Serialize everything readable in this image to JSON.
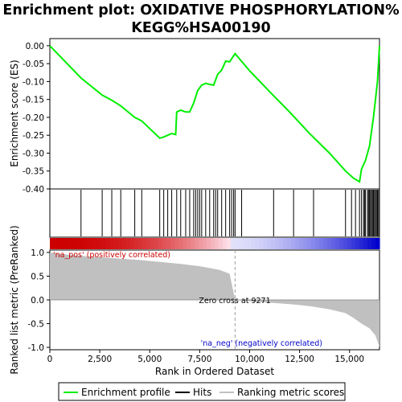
{
  "chart_data": {
    "type": "line",
    "title_line1": "Enrichment plot: OXIDATIVE PHOSPHORYLATION%",
    "title_line2": "KEGG%HSA00190",
    "top_panel": {
      "ylabel": "Enrichment score (ES)",
      "ylim": [
        -0.4,
        0.02
      ],
      "yticks": [
        "0.00",
        "-0.05",
        "-0.10",
        "-0.15",
        "-0.20",
        "-0.25",
        "-0.30",
        "-0.35",
        "-0.40"
      ],
      "ytick_values": [
        0.0,
        -0.05,
        -0.1,
        -0.15,
        -0.2,
        -0.25,
        -0.3,
        -0.35,
        -0.4
      ],
      "series_name": "Enrichment profile",
      "color": "#00ee00",
      "es_points": [
        [
          0,
          0.0
        ],
        [
          1560,
          -0.09
        ],
        [
          2620,
          -0.138
        ],
        [
          3100,
          -0.152
        ],
        [
          3550,
          -0.168
        ],
        [
          4250,
          -0.2
        ],
        [
          4600,
          -0.21
        ],
        [
          5500,
          -0.258
        ],
        [
          5700,
          -0.255
        ],
        [
          5900,
          -0.25
        ],
        [
          6100,
          -0.245
        ],
        [
          6300,
          -0.248
        ],
        [
          6350,
          -0.185
        ],
        [
          6550,
          -0.18
        ],
        [
          6800,
          -0.185
        ],
        [
          7000,
          -0.185
        ],
        [
          7200,
          -0.16
        ],
        [
          7400,
          -0.125
        ],
        [
          7600,
          -0.11
        ],
        [
          7800,
          -0.105
        ],
        [
          8000,
          -0.108
        ],
        [
          8200,
          -0.11
        ],
        [
          8400,
          -0.08
        ],
        [
          8600,
          -0.068
        ],
        [
          8800,
          -0.043
        ],
        [
          9000,
          -0.045
        ],
        [
          9271,
          -0.022
        ],
        [
          10000,
          -0.07
        ],
        [
          11000,
          -0.128
        ],
        [
          12000,
          -0.185
        ],
        [
          13000,
          -0.245
        ],
        [
          14000,
          -0.3
        ],
        [
          14800,
          -0.35
        ],
        [
          15200,
          -0.37
        ],
        [
          15500,
          -0.38
        ],
        [
          15600,
          -0.345
        ],
        [
          15800,
          -0.32
        ],
        [
          16000,
          -0.28
        ],
        [
          16200,
          -0.2
        ],
        [
          16400,
          -0.1
        ],
        [
          16500,
          0.0
        ]
      ]
    },
    "hits": [
      1560,
      2620,
      3100,
      3550,
      4250,
      4600,
      5500,
      5700,
      5900,
      6100,
      6350,
      6550,
      6800,
      7000,
      7200,
      7300,
      7400,
      7500,
      7600,
      7800,
      8000,
      8200,
      8300,
      8400,
      8600,
      8800,
      9000,
      9100,
      9200,
      9271,
      9600,
      11200,
      12200,
      13200,
      14800,
      15100,
      15300,
      15500,
      15600,
      15700,
      15750,
      15800,
      15900,
      15950,
      16000,
      16050,
      16100,
      16150,
      16200,
      16250,
      16300,
      16350,
      16400,
      16450
    ],
    "bottom_panel": {
      "ylabel": "Ranked list metric (PreRanked)",
      "ylim": [
        -1.05,
        1.05
      ],
      "yticks": [
        "1.0",
        "0.5",
        "0.0",
        "-0.5",
        "-1.0"
      ],
      "ytick_values": [
        1.0,
        0.5,
        0.0,
        -0.5,
        -1.0
      ],
      "series_name": "Ranking metric scores",
      "metric_points": [
        [
          0,
          1.0
        ],
        [
          500,
          0.97
        ],
        [
          1500,
          0.93
        ],
        [
          2500,
          0.9
        ],
        [
          3500,
          0.87
        ],
        [
          4500,
          0.84
        ],
        [
          5500,
          0.8
        ],
        [
          6500,
          0.76
        ],
        [
          7500,
          0.71
        ],
        [
          8500,
          0.63
        ],
        [
          9000,
          0.55
        ],
        [
          9271,
          0.0
        ],
        [
          10000,
          -0.03
        ],
        [
          11000,
          -0.06
        ],
        [
          12000,
          -0.09
        ],
        [
          13000,
          -0.13
        ],
        [
          14000,
          -0.2
        ],
        [
          14800,
          -0.28
        ],
        [
          15200,
          -0.38
        ],
        [
          15600,
          -0.5
        ],
        [
          16000,
          -0.6
        ],
        [
          16300,
          -0.75
        ],
        [
          16500,
          -1.0
        ]
      ],
      "zero_cross_label": "Zero cross at 9271",
      "zero_cross": 9271,
      "pos_label": "'na_pos' (positively correlated)",
      "neg_label": "'na_neg' (negatively correlated)",
      "pos_color": "#cc0000",
      "neg_color": "#0000cc"
    },
    "xlabel": "Rank in Ordered Dataset",
    "xlim": [
      0,
      16500
    ],
    "xticks": [
      "0",
      "2,500",
      "5,000",
      "7,500",
      "10,000",
      "12,500",
      "15,000"
    ],
    "xtick_values": [
      0,
      2500,
      5000,
      7500,
      10000,
      12500,
      15000
    ],
    "legend": [
      {
        "label": "Enrichment profile",
        "color": "#00ee00"
      },
      {
        "label": "Hits",
        "color": "#000000"
      },
      {
        "label": "Ranking metric scores",
        "color": "#c0c0c0"
      }
    ]
  }
}
